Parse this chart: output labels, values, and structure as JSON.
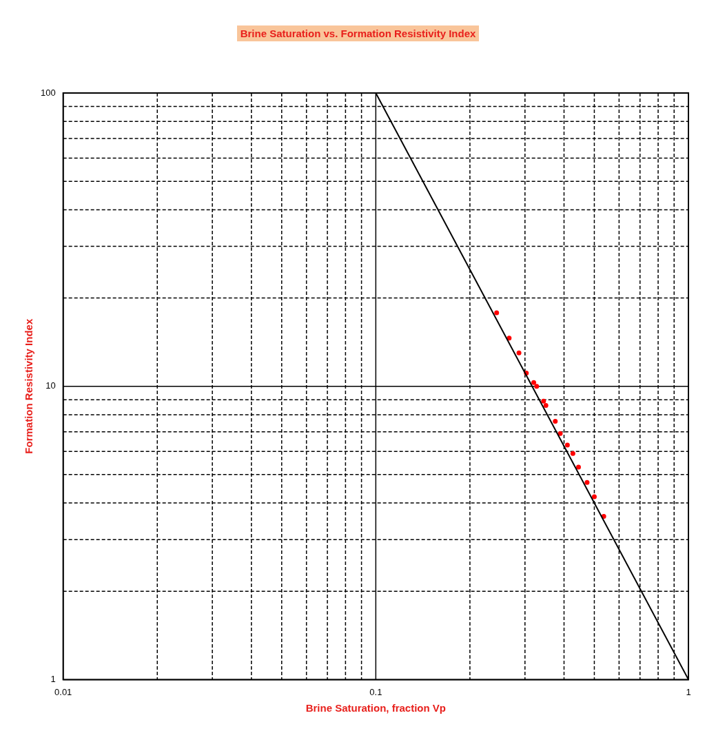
{
  "chart_data": {
    "type": "scatter",
    "title": "Brine Saturation vs. Formation Resistivity Index",
    "xlabel": "Brine Saturation, fraction Vp",
    "ylabel": "Formation Resistivity Index",
    "log": "xy",
    "grid": true,
    "legend": false,
    "marker": "circle",
    "xlim": [
      0.01,
      1
    ],
    "ylim": [
      1,
      100
    ],
    "xticks": [
      0.01,
      {
        "value": 0.02,
        "label": null
      },
      {
        "value": 0.03,
        "label": null
      },
      {
        "value": 0.04,
        "label": null
      },
      {
        "value": 0.05,
        "label": null
      },
      {
        "value": 0.06,
        "label": null
      },
      {
        "value": 0.07,
        "label": null
      },
      {
        "value": 0.08,
        "label": null
      },
      {
        "value": 0.09,
        "label": null
      },
      0.1,
      {
        "value": 0.2,
        "label": null
      },
      {
        "value": 0.3,
        "label": null
      },
      {
        "value": 0.4,
        "label": null
      },
      {
        "value": 0.5,
        "label": null
      },
      {
        "value": 0.6,
        "label": null
      },
      {
        "value": 0.7,
        "label": null
      },
      {
        "value": 0.8,
        "label": null
      },
      {
        "value": 0.9,
        "label": null
      },
      1
    ],
    "yticks": [
      1,
      {
        "value": 2,
        "label": null
      },
      {
        "value": 3,
        "label": null
      },
      {
        "value": 4,
        "label": null
      },
      {
        "value": 5,
        "label": null
      },
      {
        "value": 6,
        "label": null
      },
      {
        "value": 7,
        "label": null
      },
      {
        "value": 8,
        "label": null
      },
      {
        "value": 9,
        "label": null
      },
      10,
      {
        "value": 20,
        "label": null
      },
      {
        "value": 30,
        "label": null
      },
      {
        "value": 40,
        "label": null
      },
      {
        "value": 50,
        "label": null
      },
      {
        "value": 60,
        "label": null
      },
      {
        "value": 70,
        "label": null
      },
      {
        "value": 80,
        "label": null
      },
      {
        "value": 90,
        "label": null
      },
      100
    ],
    "series": [
      {
        "type": "line",
        "marker": "none",
        "color": "#000000",
        "x": [
          0.1,
          1
        ],
        "values": [
          100,
          1
        ]
      },
      {
        "type": "scatter",
        "color": "#ff0000",
        "x": [
          0.2435,
          0.267,
          0.287,
          0.303,
          0.32,
          0.327,
          0.344,
          0.35,
          0.375,
          0.389,
          0.41,
          0.427,
          0.445,
          0.474,
          0.5,
          0.536
        ],
        "values": [
          17.8,
          14.6,
          13.0,
          11.1,
          10.3,
          10.0,
          8.9,
          8.6,
          7.6,
          6.9,
          6.3,
          5.9,
          5.3,
          4.7,
          4.2,
          3.6
        ]
      }
    ]
  }
}
